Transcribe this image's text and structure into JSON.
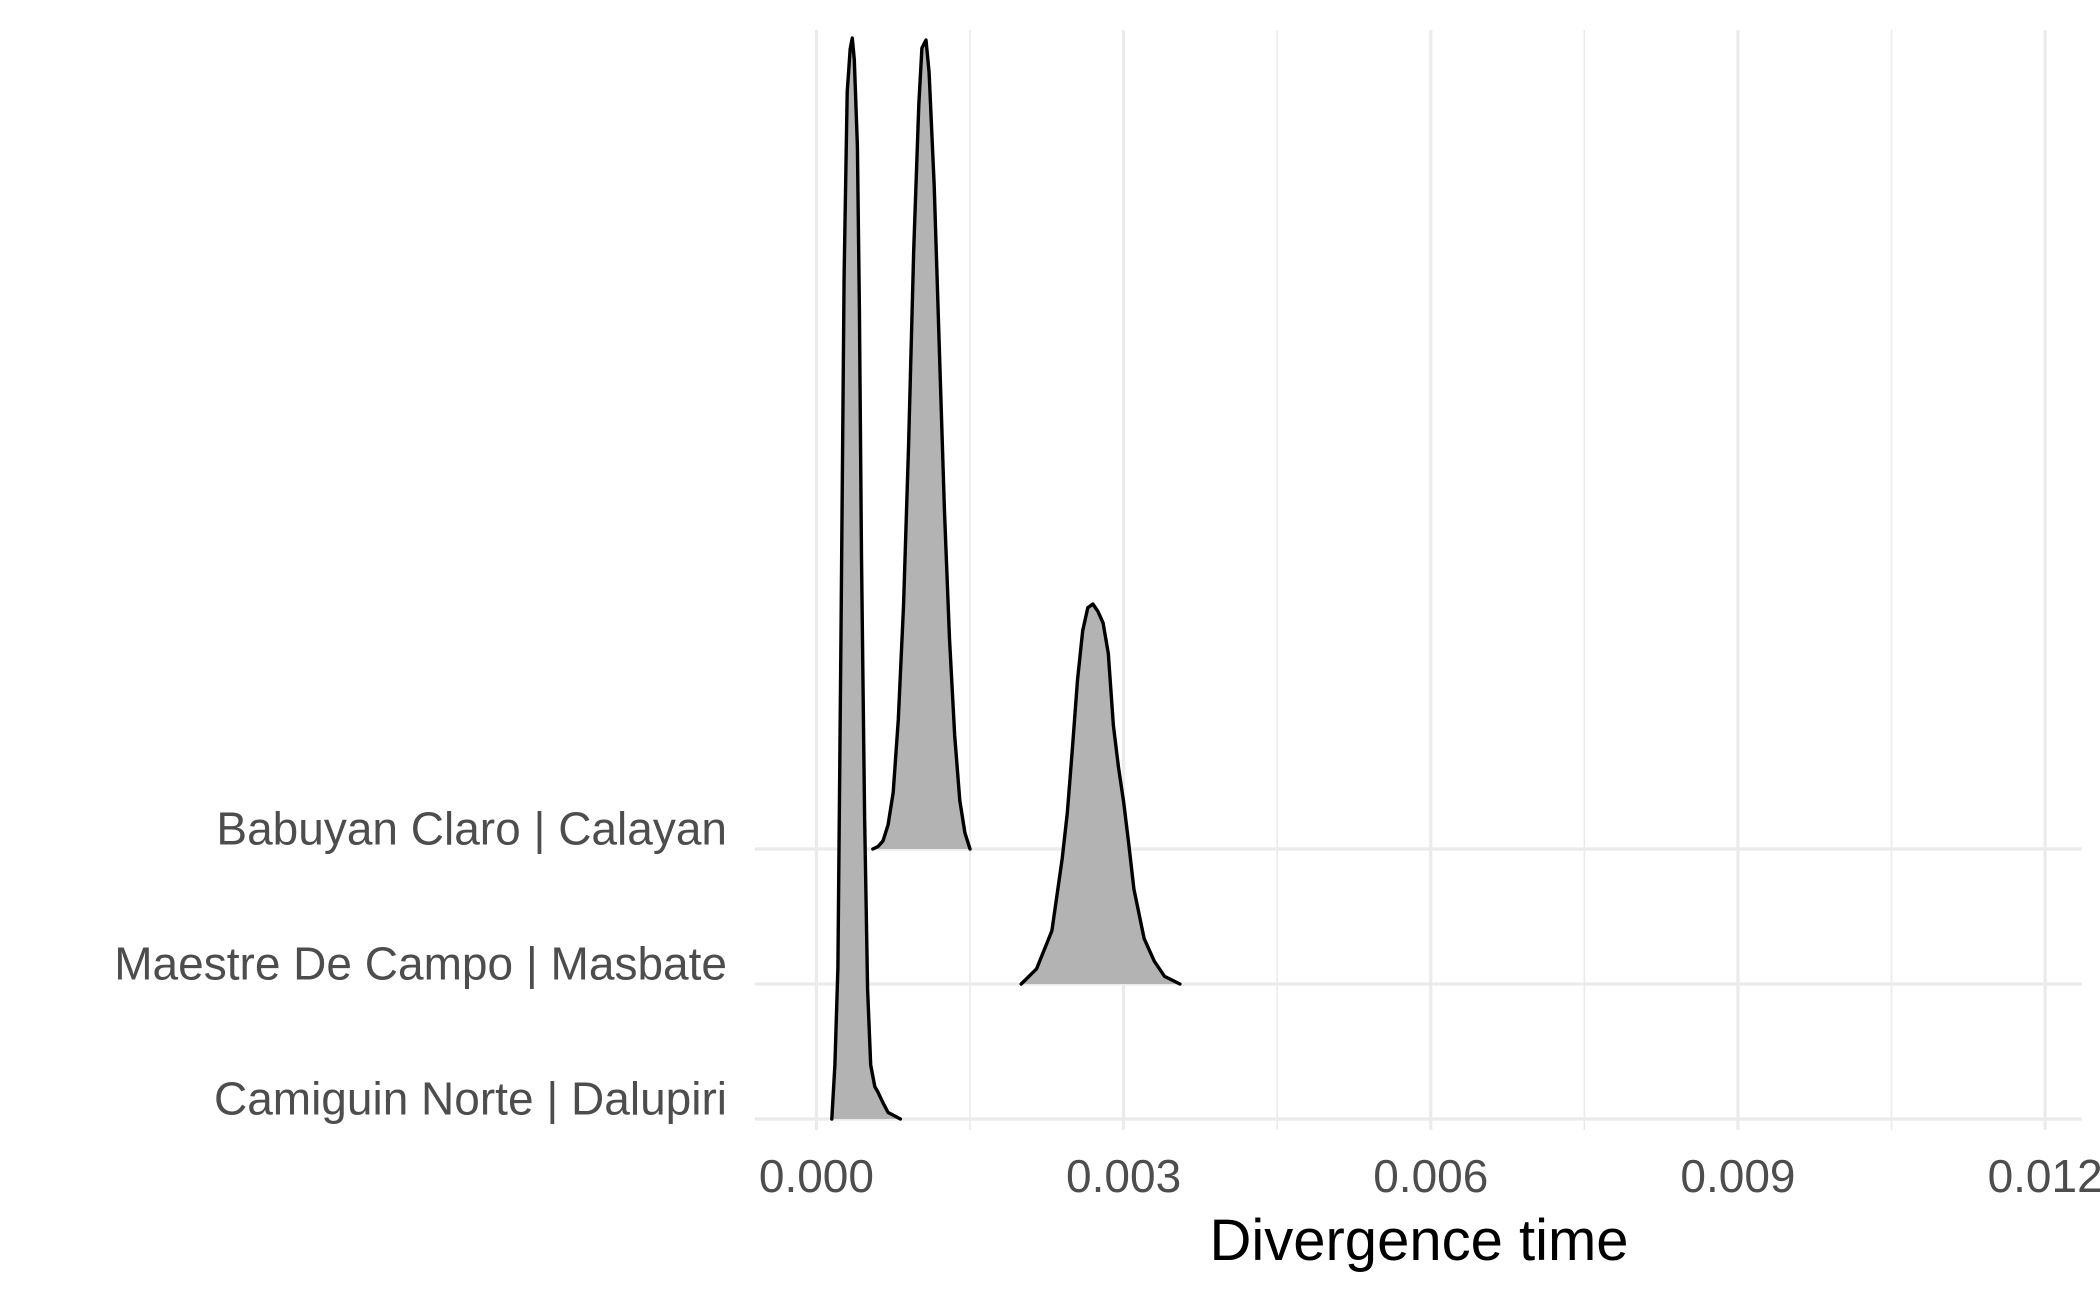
{
  "chart_data": {
    "type": "ridgeline",
    "title": "",
    "xlabel": "Divergence time",
    "ylabel": "",
    "xlim": [
      -0.0006,
      0.01236
    ],
    "x_ticks": [
      {
        "value": 0.0,
        "label": "0.000"
      },
      {
        "value": 0.003,
        "label": "0.003"
      },
      {
        "value": 0.006,
        "label": "0.006"
      },
      {
        "value": 0.009,
        "label": "0.009"
      },
      {
        "value": 0.012,
        "label": "0.012"
      }
    ],
    "x_minor_ticks": [
      0.0015,
      0.0045,
      0.0075,
      0.0105
    ],
    "grid": true,
    "legend": "none",
    "fill_color": "#b3b3b3",
    "line_color": "#000000",
    "grid_color": "#ebebeb",
    "categories": [
      "Camiguin Norte | Dalupiri",
      "Maestre De Campo | Masbate",
      "Babuyan Claro | Calayan"
    ],
    "series": [
      {
        "name": "Camiguin Norte | Dalupiri",
        "x": [
          0.00015,
          0.00018,
          0.00021,
          0.00024,
          0.00027,
          0.0003,
          0.00033,
          0.00035,
          0.00037,
          0.0004,
          0.00042,
          0.00044,
          0.00047,
          0.0005,
          0.00053,
          0.00057,
          0.0006,
          0.00065,
          0.0007,
          0.00076,
          0.00082
        ],
        "y": [
          0.0,
          0.05,
          0.14,
          0.45,
          0.78,
          0.95,
          0.99,
          1.0,
          0.98,
          0.9,
          0.75,
          0.52,
          0.28,
          0.12,
          0.05,
          0.03,
          0.025,
          0.015,
          0.006,
          0.003,
          0.0
        ]
      },
      {
        "name": "Maestre De Campo | Masbate",
        "x": [
          0.002,
          0.00215,
          0.0023,
          0.0024,
          0.00245,
          0.0025,
          0.00255,
          0.0026,
          0.00265,
          0.0027,
          0.00275,
          0.0028,
          0.00285,
          0.0029,
          0.00295,
          0.003,
          0.00305,
          0.0031,
          0.0032,
          0.0033,
          0.0034,
          0.00355
        ],
        "y": [
          0.0,
          0.04,
          0.14,
          0.33,
          0.45,
          0.62,
          0.8,
          0.93,
          0.99,
          1.0,
          0.98,
          0.95,
          0.87,
          0.68,
          0.57,
          0.48,
          0.37,
          0.25,
          0.12,
          0.06,
          0.02,
          0.0
        ]
      },
      {
        "name": "Babuyan Claro | Calayan",
        "x": [
          0.00055,
          0.0006,
          0.00065,
          0.0007,
          0.00075,
          0.0008,
          0.00085,
          0.0009,
          0.00095,
          0.001,
          0.00103,
          0.00107,
          0.0011,
          0.00115,
          0.0012,
          0.00125,
          0.0013,
          0.00135,
          0.0014,
          0.00145,
          0.0015
        ],
        "y": [
          0.0,
          0.003,
          0.01,
          0.03,
          0.07,
          0.16,
          0.3,
          0.5,
          0.74,
          0.92,
          0.99,
          1.0,
          0.96,
          0.82,
          0.62,
          0.42,
          0.26,
          0.14,
          0.06,
          0.02,
          0.0
        ]
      }
    ]
  }
}
